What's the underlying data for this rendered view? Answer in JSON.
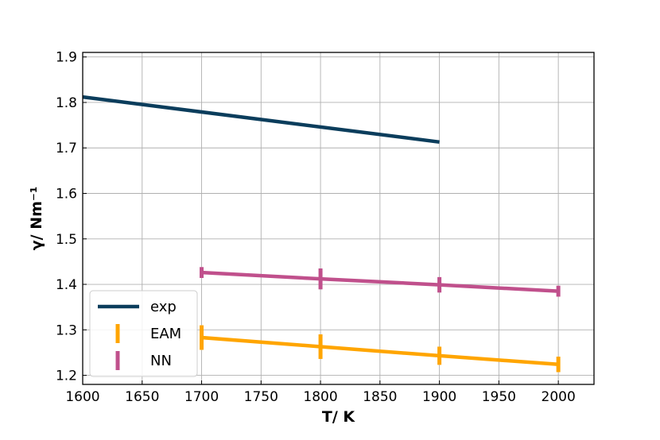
{
  "chart_data": {
    "type": "line",
    "title": "",
    "xlabel": "T/ K",
    "ylabel": "γ/ Nm⁻¹",
    "xlim": [
      1600,
      2030
    ],
    "ylim": [
      1.18,
      1.91
    ],
    "xticks": [
      1600,
      1650,
      1700,
      1750,
      1800,
      1850,
      1900,
      1950,
      2000
    ],
    "yticks": [
      1.2,
      1.3,
      1.4,
      1.5,
      1.6,
      1.7,
      1.8,
      1.9
    ],
    "grid": true,
    "legend_position": "bottom-left",
    "series": [
      {
        "name": "exp",
        "color": "#0b3d5c",
        "x": [
          1600,
          1900
        ],
        "y": [
          1.812,
          1.713
        ]
      },
      {
        "name": "EAM",
        "color": "#ffa500",
        "x": [
          1700,
          1800,
          1900,
          2000
        ],
        "y": [
          1.283,
          1.263,
          1.243,
          1.224
        ],
        "err": [
          0.027,
          0.027,
          0.02,
          0.017
        ]
      },
      {
        "name": "NN",
        "color": "#c0508c",
        "x": [
          1700,
          1800,
          1900,
          2000
        ],
        "y": [
          1.426,
          1.412,
          1.399,
          1.385
        ],
        "err": [
          0.012,
          0.023,
          0.017,
          0.012
        ]
      }
    ]
  }
}
